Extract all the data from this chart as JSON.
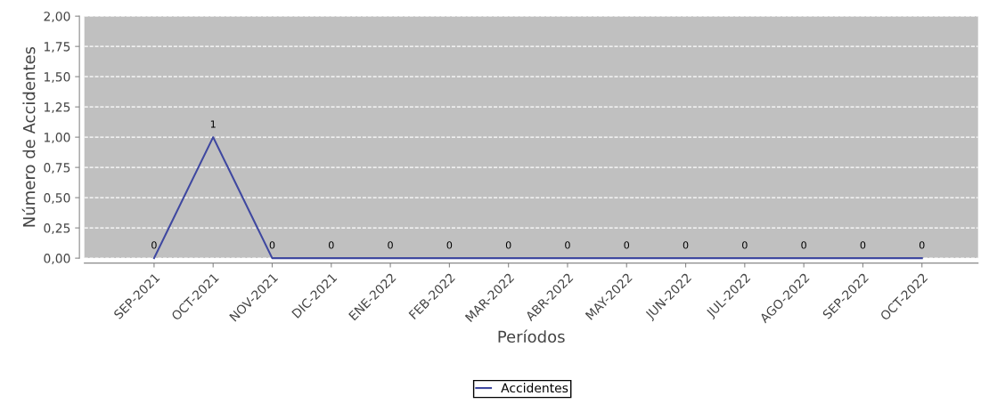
{
  "chart_data": {
    "type": "line",
    "xlabel": "Períodos",
    "ylabel": "Número de Accidentes",
    "categories": [
      "SEP-2021",
      "OCT-2021",
      "NOV-2021",
      "DIC-2021",
      "ENE-2022",
      "FEB-2022",
      "MAR-2022",
      "ABR-2022",
      "MAY-2022",
      "JUN-2022",
      "JUL-2022",
      "AGO-2022",
      "SEP-2022",
      "OCT-2022"
    ],
    "series": [
      {
        "name": "Accidentes",
        "color": "#3f48a0",
        "values": [
          0,
          1,
          0,
          0,
          0,
          0,
          0,
          0,
          0,
          0,
          0,
          0,
          0,
          0
        ]
      }
    ],
    "ylim": [
      0,
      2
    ],
    "yticks": [
      {
        "value": 0,
        "label": "0,00"
      },
      {
        "value": 0.25,
        "label": "0,25"
      },
      {
        "value": 0.5,
        "label": "0,50"
      },
      {
        "value": 0.75,
        "label": "0,75"
      },
      {
        "value": 1,
        "label": "1,00"
      },
      {
        "value": 1.25,
        "label": "1,25"
      },
      {
        "value": 1.5,
        "label": "1,50"
      },
      {
        "value": 1.75,
        "label": "1,75"
      },
      {
        "value": 2,
        "label": "2,00"
      }
    ],
    "grid": "y",
    "legend": "bottom",
    "data_labels": true,
    "marker": "none",
    "line_style": "solid"
  }
}
